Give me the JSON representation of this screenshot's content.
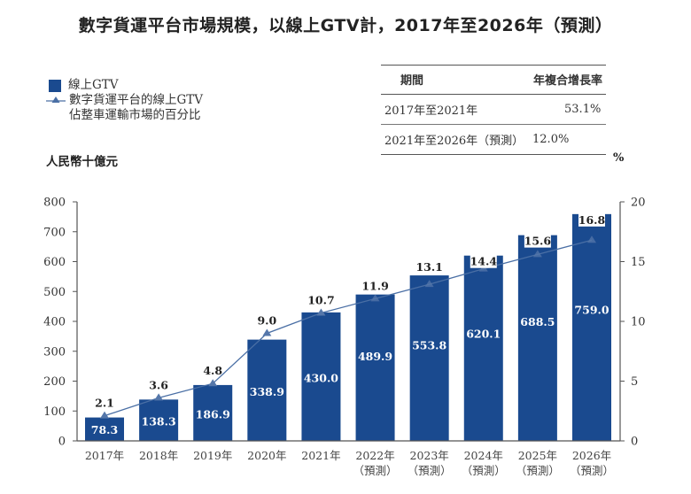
{
  "title": "數字貨運平台市場規模，以線上GTV計，2017年至2026年（預測）",
  "legend": {
    "bar": "線上GTV",
    "line_line1": "數字貨運平台的線上GTV",
    "line_line2": "佔整車運輸市場的百分比"
  },
  "units": {
    "left": "人民幣十億元",
    "right": "%"
  },
  "cagr_table": {
    "headers": [
      "期間",
      "年複合增長率"
    ],
    "rows": [
      {
        "period": "2017年至2021年",
        "value": "53.1%"
      },
      {
        "period": "2021年至2026年（預測）",
        "value": "12.0%"
      }
    ]
  },
  "colors": {
    "bar": "#1a4a8f",
    "line": "#4a6fa5",
    "marker": "#5577aa"
  },
  "chart_data": {
    "type": "bar",
    "title": "數字貨運平台市場規模，以線上GTV計，2017年至2026年（預測）",
    "categories": [
      "2017年",
      "2018年",
      "2019年",
      "2020年",
      "2021年",
      "2022年",
      "2023年",
      "2024年",
      "2025年",
      "2026年"
    ],
    "category_sublabels": [
      "",
      "",
      "",
      "",
      "",
      "（預測）",
      "（預測）",
      "（預測）",
      "（預測）",
      "（預測）"
    ],
    "series": [
      {
        "name": "線上GTV",
        "type": "bar",
        "axis": "left",
        "values": [
          78.3,
          138.3,
          186.9,
          338.9,
          430.0,
          489.9,
          553.8,
          620.1,
          688.5,
          759.0
        ],
        "labels": [
          "78.3",
          "138.3",
          "186.9",
          "338.9",
          "430.0",
          "489.9",
          "553.8",
          "620.1",
          "688.5",
          "759.0"
        ]
      },
      {
        "name": "數字貨運平台的線上GTV佔整車運輸市場的百分比",
        "type": "line",
        "axis": "right",
        "marker": "triangle",
        "values": [
          2.1,
          3.6,
          4.8,
          9.0,
          10.7,
          11.9,
          13.1,
          14.4,
          15.6,
          16.8
        ],
        "labels": [
          "2.1",
          "3.6",
          "4.8",
          "9.0",
          "10.7",
          "11.9",
          "13.1",
          "14.4",
          "15.6",
          "16.8"
        ]
      }
    ],
    "ylabel": "人民幣十億元",
    "ylim": [
      0,
      800
    ],
    "yticks": [
      0,
      100,
      200,
      300,
      400,
      500,
      600,
      700,
      800
    ],
    "y2label": "%",
    "y2lim": [
      0,
      20
    ],
    "y2ticks": [
      0,
      5,
      10,
      15,
      20
    ],
    "grid": false,
    "legend_position": "top-left"
  }
}
